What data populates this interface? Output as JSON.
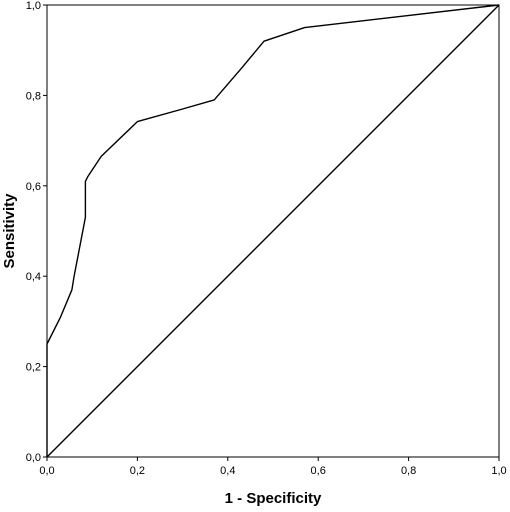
{
  "chart_data": {
    "type": "line",
    "title": "",
    "xlabel": "1 - Specificity",
    "ylabel": "Sensitivity",
    "xlim": [
      0,
      1
    ],
    "ylim": [
      0,
      1
    ],
    "xticks": [
      "0,0",
      "0,2",
      "0,4",
      "0,6",
      "0,8",
      "1,0"
    ],
    "yticks": [
      "0,0",
      "0,2",
      "0,4",
      "0,6",
      "0,8",
      "1,0"
    ],
    "grid": false,
    "line_color": "#000000",
    "series": [
      {
        "x": [
          0,
          0,
          0.03,
          0.055,
          0.06,
          0.085,
          0.085,
          0.09,
          0.12,
          0.2,
          0.3,
          0.37,
          0.43,
          0.48,
          0.57,
          1.0
        ],
        "y": [
          0,
          0.25,
          0.31,
          0.37,
          0.4,
          0.53,
          0.61,
          0.62,
          0.665,
          0.742,
          0.77,
          0.79,
          0.86,
          0.92,
          0.95,
          1.0
        ]
      },
      {
        "x": [
          0,
          1
        ],
        "y": [
          0,
          1
        ]
      }
    ]
  }
}
